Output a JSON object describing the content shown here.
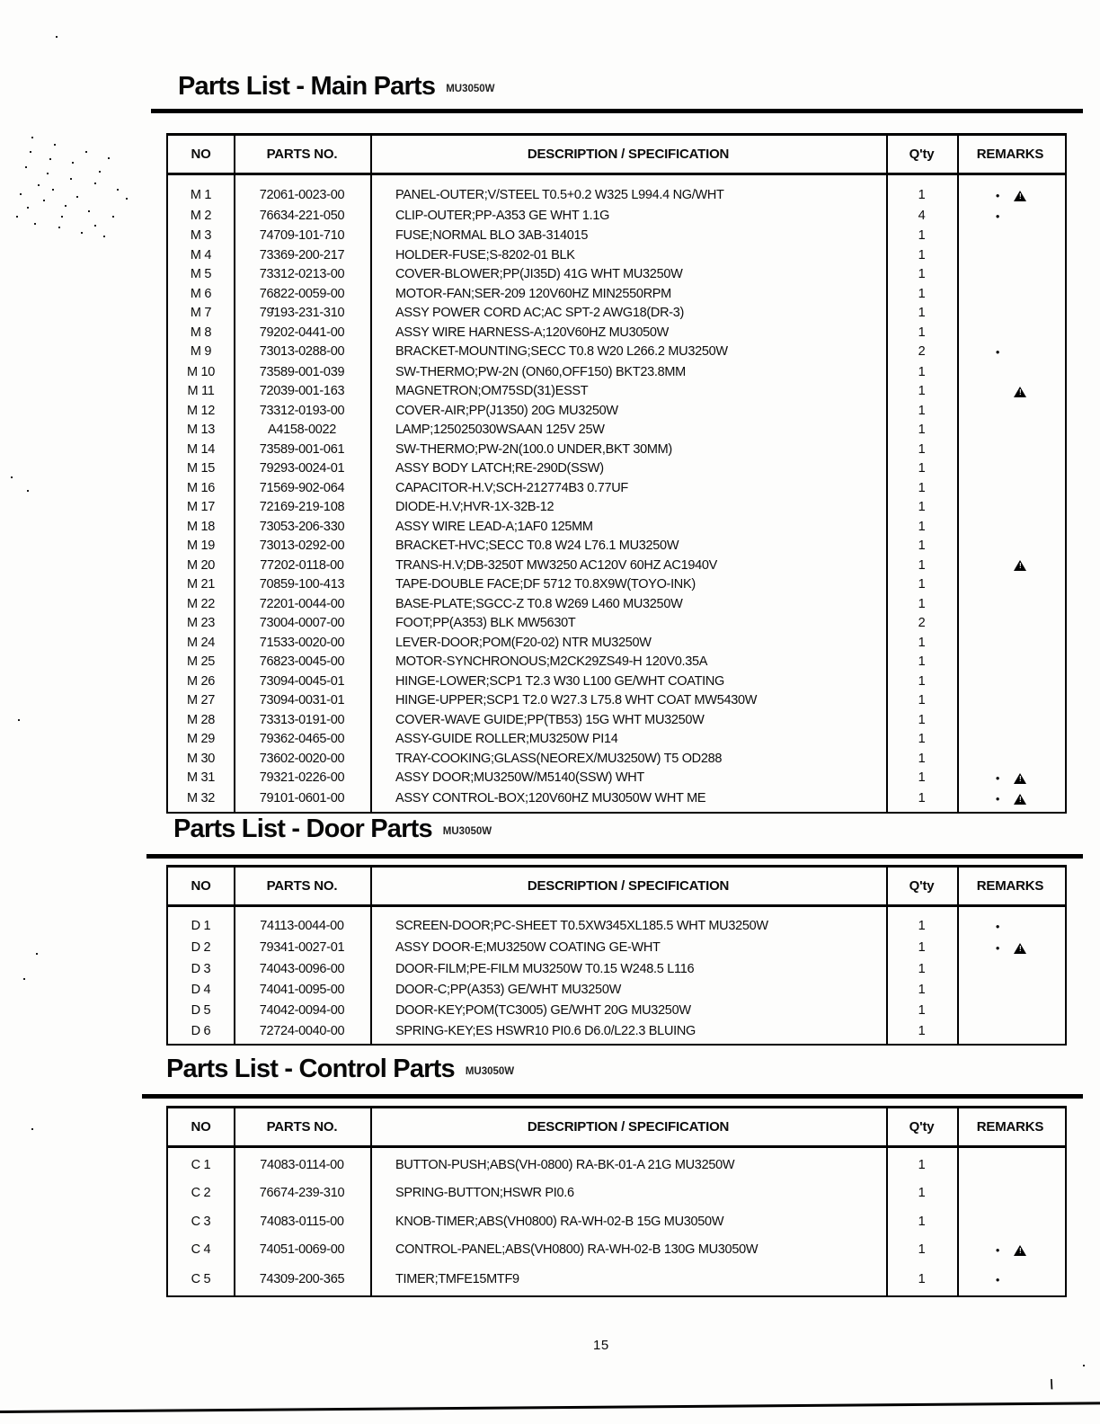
{
  "page": {
    "number": "15",
    "stray_mark": "\\"
  },
  "symbols": {
    "dot": "●",
    "warning": "▲"
  },
  "sections": [
    {
      "title": "Parts List - Main Parts",
      "model": "MU3050W",
      "columns": [
        "NO",
        "PARTS NO.",
        "DESCRIPTION / SPECIFICATION",
        "Q'ty",
        "REMARKS"
      ],
      "rows": [
        {
          "no": "M 1",
          "part": "72061-0023-00",
          "desc": "PANEL-OUTER;V/STEEL T0.5+0.2 W325 L994.4 NG/WHT",
          "qty": "1",
          "remarks": [
            "dot",
            "warn"
          ]
        },
        {
          "no": "M 2",
          "part": "76634-221-050",
          "desc": "CLIP-OUTER;PP-A353 GE WHT 1.1G",
          "qty": "4",
          "remarks": [
            "dot"
          ]
        },
        {
          "no": "M 3",
          "part": "74709-101-710",
          "desc": "FUSE;NORMAL BLO 3AB-314015",
          "qty": "1",
          "remarks": []
        },
        {
          "no": "M 4",
          "part": "73369-200-217",
          "desc": "HOLDER-FUSE;S-8202-01 BLK",
          "qty": "1",
          "remarks": []
        },
        {
          "no": "M 5",
          "part": "73312-0213-00",
          "desc": "COVER-BLOWER;PP(JI35D) 41G WHT MU3250W",
          "qty": "1",
          "remarks": []
        },
        {
          "no": "M 6",
          "part": "76822-0059-00",
          "desc": "MOTOR-FAN;SER-209 120V60HZ MIN2550RPM",
          "qty": "1",
          "remarks": []
        },
        {
          "no": "M 7",
          "part": "79193-231-310",
          "desc": "ASSY POWER CORD AC;AC SPT-2 AWG18(DR-3)",
          "qty": "1",
          "remarks": []
        },
        {
          "no": "M 8",
          "part": "79202-0441-00",
          "desc": "ASSY WIRE HARNESS-A;120V60HZ MU3050W",
          "qty": "1",
          "remarks": []
        },
        {
          "no": "M 9",
          "part": "73013-0288-00",
          "desc": "BRACKET-MOUNTING;SECC T0.8 W20 L266.2 MU3250W",
          "qty": "2",
          "remarks": [
            "dot"
          ]
        },
        {
          "no": "M 10",
          "part": "73589-001-039",
          "desc": "SW-THERMO;PW-2N (ON60,OFF150) BKT23.8MM",
          "qty": "1",
          "remarks": []
        },
        {
          "no": "M 11",
          "part": "72039-001-163",
          "desc": "MAGNETRON;OM75SD(31)ESST",
          "qty": "1",
          "remarks": [
            "warn"
          ]
        },
        {
          "no": "M 12",
          "part": "73312-0193-00",
          "desc": "COVER-AIR;PP(J1350) 20G MU3250W",
          "qty": "1",
          "remarks": []
        },
        {
          "no": "M 13",
          "part": "A4158-0022",
          "desc": "LAMP;125025030WSAAN 125V 25W",
          "qty": "1",
          "remarks": []
        },
        {
          "no": "M 14",
          "part": "73589-001-061",
          "desc": "SW-THERMO;PW-2N(100.0 UNDER,BKT 30MM)",
          "qty": "1",
          "remarks": []
        },
        {
          "no": "M 15",
          "part": "79293-0024-01",
          "desc": "ASSY BODY LATCH;RE-290D(SSW)",
          "qty": "1",
          "remarks": []
        },
        {
          "no": "M 16",
          "part": "71569-902-064",
          "desc": "CAPACITOR-H.V;SCH-212774B3 0.77UF",
          "qty": "1",
          "remarks": []
        },
        {
          "no": "M 17",
          "part": "72169-219-108",
          "desc": "DIODE-H.V;HVR-1X-32B-12",
          "qty": "1",
          "remarks": []
        },
        {
          "no": "M 18",
          "part": "73053-206-330",
          "desc": "ASSY WIRE LEAD-A;1AF0 125MM",
          "qty": "1",
          "remarks": []
        },
        {
          "no": "M 19",
          "part": "73013-0292-00",
          "desc": "BRACKET-HVC;SECC T0.8 W24 L76.1 MU3250W",
          "qty": "1",
          "remarks": []
        },
        {
          "no": "M 20",
          "part": "77202-0118-00",
          "desc": "TRANS-H.V;DB-3250T MW3250 AC120V 60HZ AC1940V",
          "qty": "1",
          "remarks": [
            "warn"
          ]
        },
        {
          "no": "M 21",
          "part": "70859-100-413",
          "desc": "TAPE-DOUBLE FACE;DF 5712 T0.8X9W(TOYO-INK)",
          "qty": "1",
          "remarks": []
        },
        {
          "no": "M 22",
          "part": "72201-0044-00",
          "desc": "BASE-PLATE;SGCC-Z T0.8 W269 L460 MU3250W",
          "qty": "1",
          "remarks": []
        },
        {
          "no": "M 23",
          "part": "73004-0007-00",
          "desc": "FOOT;PP(A353) BLK MW5630T",
          "qty": "2",
          "remarks": []
        },
        {
          "no": "M 24",
          "part": "71533-0020-00",
          "desc": "LEVER-DOOR;POM(F20-02) NTR MU3250W",
          "qty": "1",
          "remarks": []
        },
        {
          "no": "M 25",
          "part": "76823-0045-00",
          "desc": "MOTOR-SYNCHRONOUS;M2CK29ZS49-H 120V0.35A",
          "qty": "1",
          "remarks": []
        },
        {
          "no": "M 26",
          "part": "73094-0045-01",
          "desc": "HINGE-LOWER;SCP1 T2.3 W30 L100 GE/WHT COATING",
          "qty": "1",
          "remarks": []
        },
        {
          "no": "M 27",
          "part": "73094-0031-01",
          "desc": "HINGE-UPPER;SCP1 T2.0 W27.3 L75.8 WHT COAT MW5430W",
          "qty": "1",
          "remarks": []
        },
        {
          "no": "M 28",
          "part": "73313-0191-00",
          "desc": "COVER-WAVE GUIDE;PP(TB53) 15G WHT MU3250W",
          "qty": "1",
          "remarks": []
        },
        {
          "no": "M 29",
          "part": "79362-0465-00",
          "desc": "ASSY-GUIDE ROLLER;MU3250W PI14",
          "qty": "1",
          "remarks": []
        },
        {
          "no": "M 30",
          "part": "73602-0020-00",
          "desc": "TRAY-COOKING;GLASS(NEOREX/MU3250W) T5 OD288",
          "qty": "1",
          "remarks": []
        },
        {
          "no": "M 31",
          "part": "79321-0226-00",
          "desc": "ASSY DOOR;MU3250W/M5140(SSW) WHT",
          "qty": "1",
          "remarks": [
            "dot",
            "warn"
          ]
        },
        {
          "no": "M 32",
          "part": "79101-0601-00",
          "desc": "ASSY CONTROL-BOX;120V60HZ MU3050W WHT ME",
          "qty": "1",
          "remarks": [
            "dot",
            "warn"
          ]
        }
      ]
    },
    {
      "title": "Parts List - Door Parts",
      "model": "MU3050W",
      "columns": [
        "NO",
        "PARTS NO.",
        "DESCRIPTION / SPECIFICATION",
        "Q'ty",
        "REMARKS"
      ],
      "rows": [
        {
          "no": "D 1",
          "part": "74113-0044-00",
          "desc": "SCREEN-DOOR;PC-SHEET T0.5XW345XL185.5 WHT MU3250W",
          "qty": "1",
          "remarks": [
            "dot"
          ]
        },
        {
          "no": "D 2",
          "part": "79341-0027-01",
          "desc": "ASSY DOOR-E;MU3250W COATING GE-WHT",
          "qty": "1",
          "remarks": [
            "dot",
            "warn"
          ]
        },
        {
          "no": "D 3",
          "part": "74043-0096-00",
          "desc": "DOOR-FILM;PE-FILM MU3250W T0.15 W248.5 L116",
          "qty": "1",
          "remarks": []
        },
        {
          "no": "D 4",
          "part": "74041-0095-00",
          "desc": "DOOR-C;PP(A353) GE/WHT MU3250W",
          "qty": "1",
          "remarks": []
        },
        {
          "no": "D 5",
          "part": "74042-0094-00",
          "desc": "DOOR-KEY;POM(TC3005) GE/WHT 20G MU3250W",
          "qty": "1",
          "remarks": []
        },
        {
          "no": "D 6",
          "part": "72724-0040-00",
          "desc": "SPRING-KEY;ES HSWR10 PI0.6 D6.0/L22.3 BLUING",
          "qty": "1",
          "remarks": []
        }
      ]
    },
    {
      "title": "Parts List - Control Parts",
      "model": "MU3050W",
      "columns": [
        "NO",
        "PARTS NO.",
        "DESCRIPTION / SPECIFICATION",
        "Q'ty",
        "REMARKS"
      ],
      "rows": [
        {
          "no": "C 1",
          "part": "74083-0114-00",
          "desc": "BUTTON-PUSH;ABS(VH-0800) RA-BK-01-A 21G MU3250W",
          "qty": "1",
          "remarks": []
        },
        {
          "no": "C 2",
          "part": "76674-239-310",
          "desc": "SPRING-BUTTON;HSWR PI0.6",
          "qty": "1",
          "remarks": []
        },
        {
          "no": "C 3",
          "part": "74083-0115-00",
          "desc": "KNOB-TIMER;ABS(VH0800) RA-WH-02-B 15G MU3050W",
          "qty": "1",
          "remarks": []
        },
        {
          "no": "C 4",
          "part": "74051-0069-00",
          "desc": "CONTROL-PANEL;ABS(VH0800) RA-WH-02-B 130G MU3050W",
          "qty": "1",
          "remarks": [
            "dot",
            "warn"
          ]
        },
        {
          "no": "C 5",
          "part": "74309-200-365",
          "desc": "TIMER;TMFE15MTF9",
          "qty": "1",
          "remarks": [
            "dot"
          ]
        }
      ]
    }
  ]
}
